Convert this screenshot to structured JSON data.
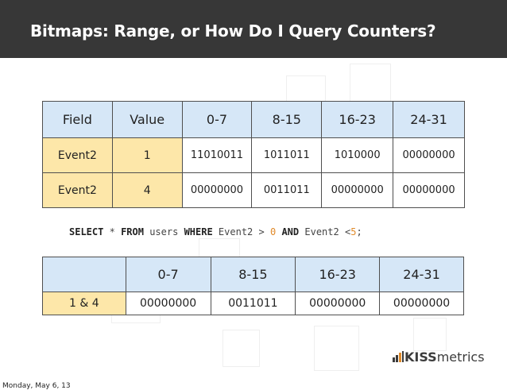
{
  "slide": {
    "title": "Bitmaps: Range, or How Do I Query Counters?",
    "footer_date": "Monday, May 6, 13"
  },
  "table1": {
    "headers": [
      "Field",
      "Value",
      "0-7",
      "8-15",
      "16-23",
      "24-31"
    ],
    "rows": [
      [
        "Event2",
        "1",
        "11010011",
        "1011011",
        "1010000",
        "00000000"
      ],
      [
        "Event2",
        "4",
        "00000000",
        "0011011",
        "00000000",
        "00000000"
      ]
    ]
  },
  "sql": {
    "select": "SELECT",
    "star": "*",
    "from": "FROM",
    "table": "users",
    "where": "WHERE",
    "col1": "Event2",
    "op1": ">",
    "val1": "0",
    "and": "AND",
    "col2": "Event2",
    "op2": "<",
    "val2": "5",
    "semi": ";"
  },
  "table2": {
    "headers": [
      "",
      "0-7",
      "8-15",
      "16-23",
      "24-31"
    ],
    "row": [
      "1 & 4",
      "00000000",
      "0011011",
      "00000000",
      "00000000"
    ]
  },
  "logo": {
    "bold": "KISS",
    "rest": "metrics"
  },
  "colors": {
    "header_bg": "#373737",
    "header_cell": "#d6e7f7",
    "field_cell": "#fde7a9",
    "sql_number": "#e08a2a"
  }
}
